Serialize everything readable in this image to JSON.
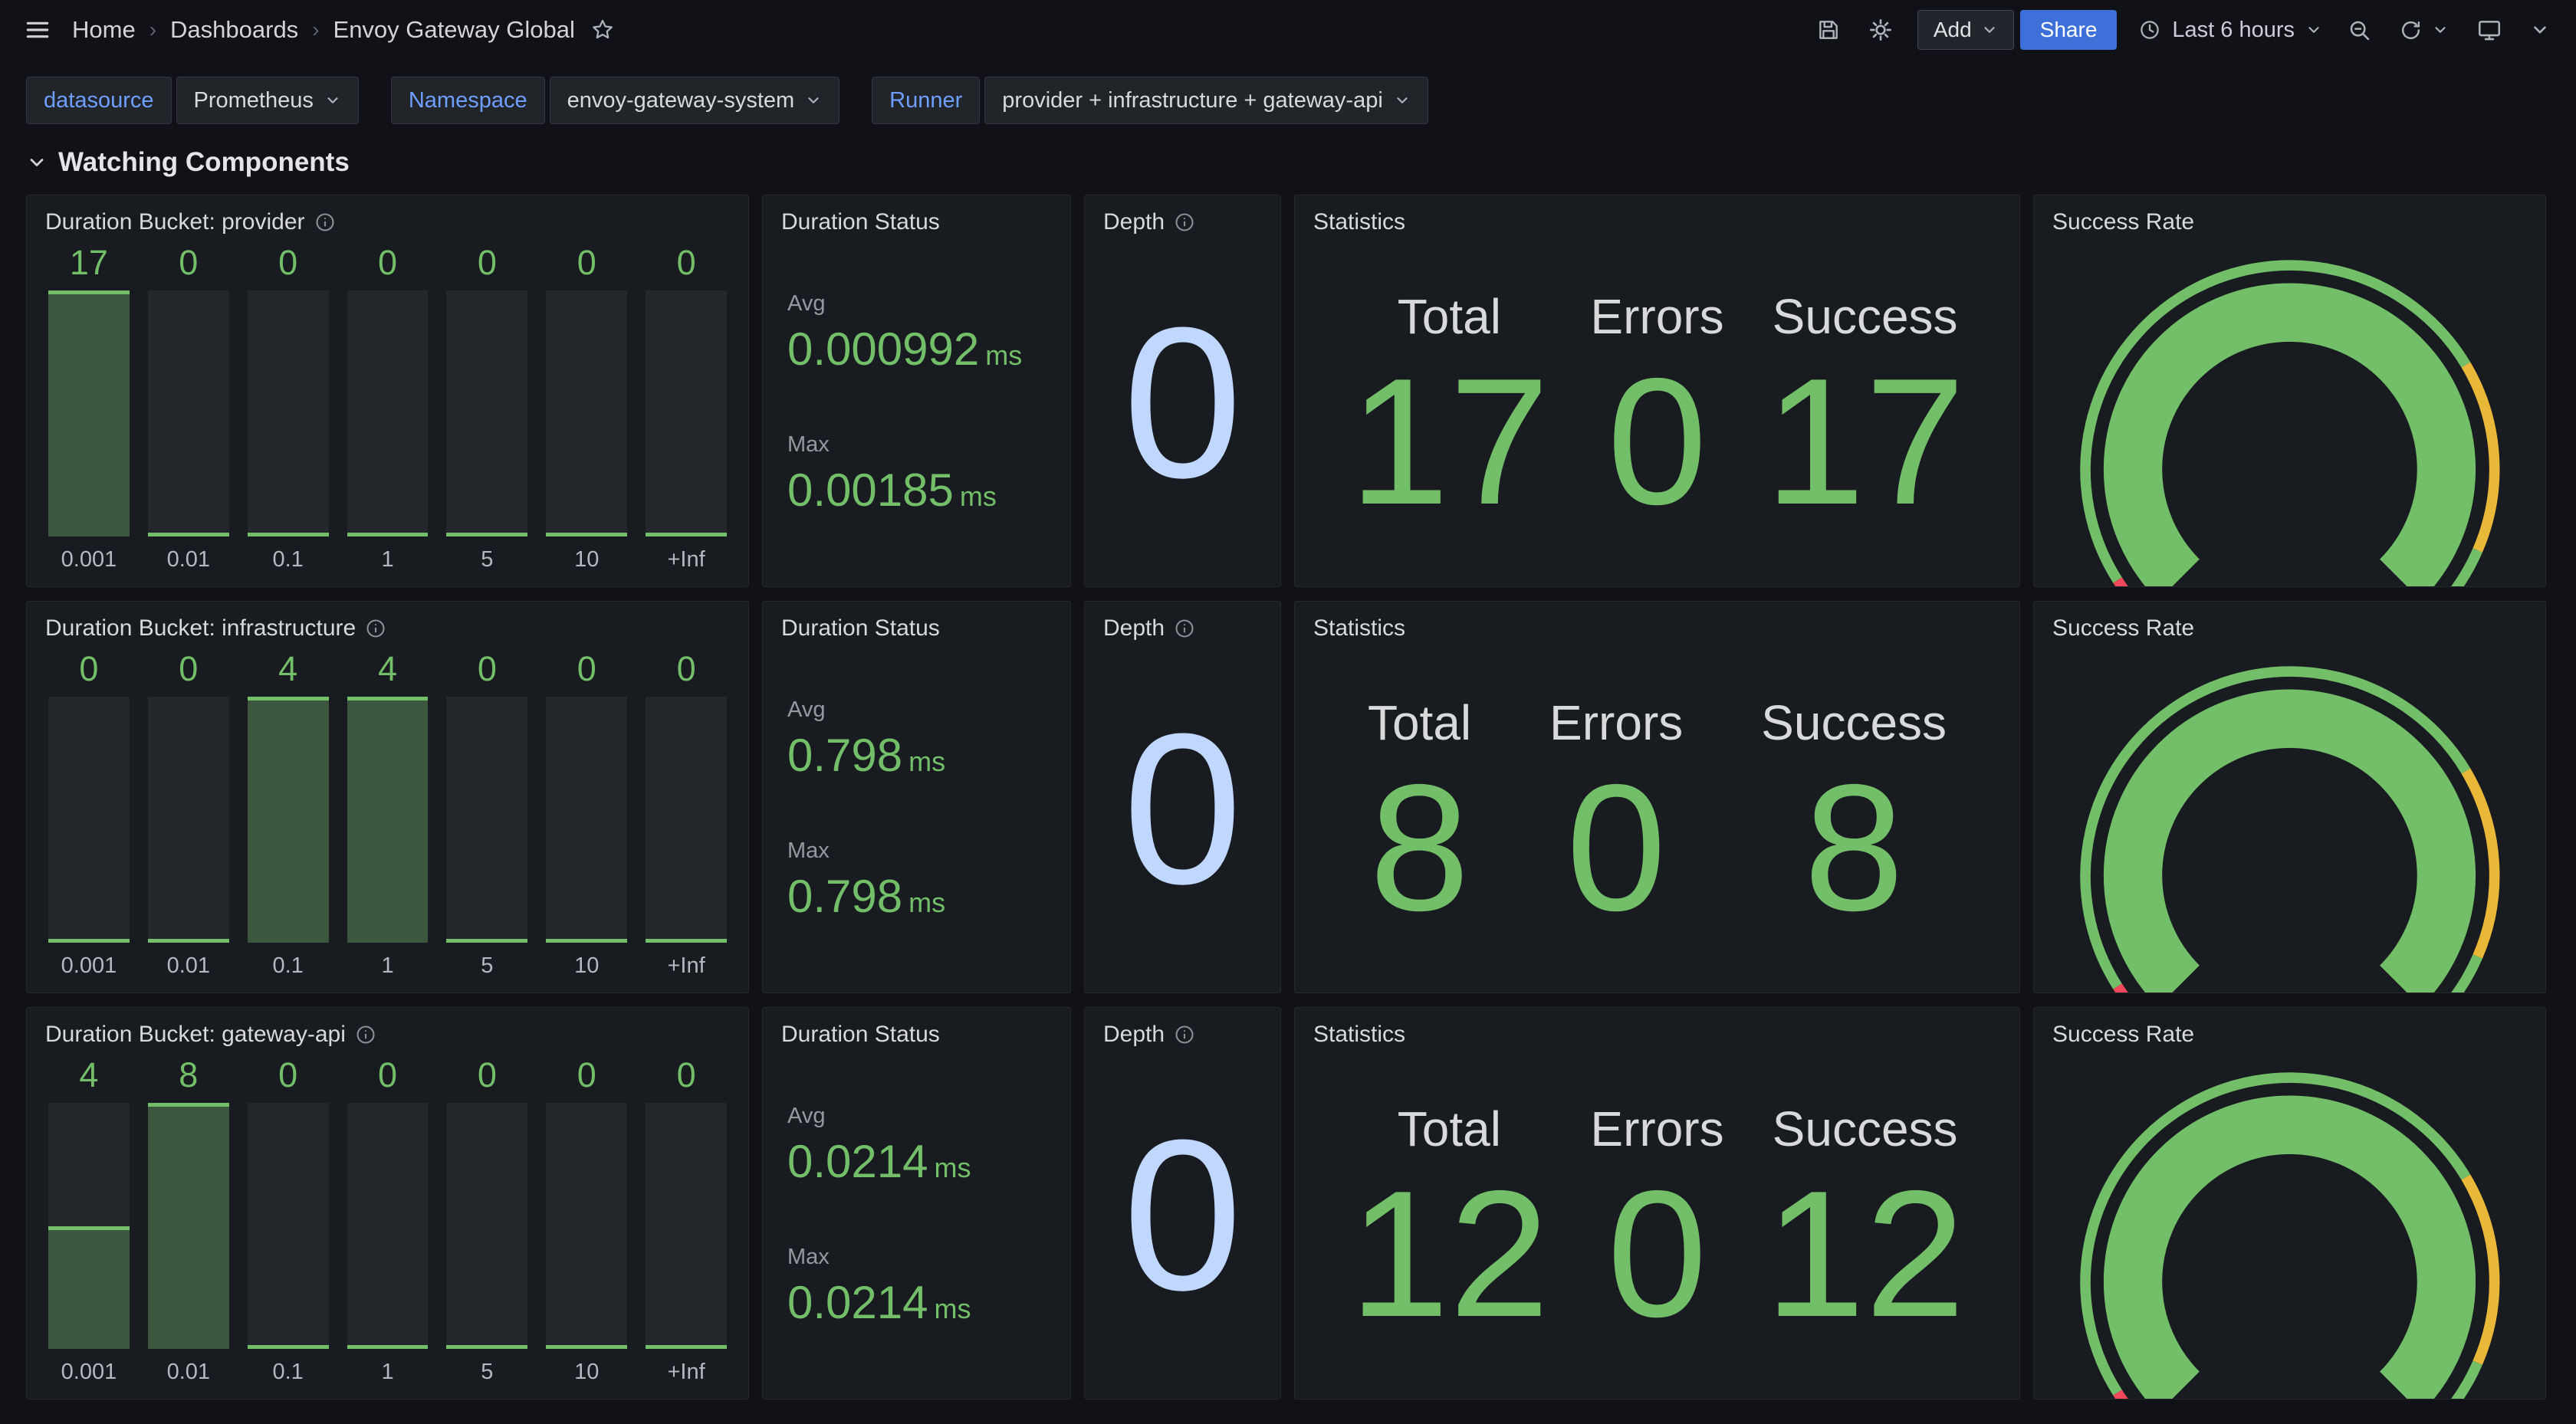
{
  "colors": {
    "page_bg": "#111217",
    "panel_bg": "#181B1F",
    "green": "#73BF69",
    "pale_blue": "#C0D8FF",
    "share_blue": "#3D71D9",
    "label_blue": "#6E9FFF",
    "red": "#F2495C",
    "yellow": "#EAB839"
  },
  "icons": {
    "hamburger": "menu",
    "star": "favorite outline",
    "save": "floppy disk",
    "gear": "dashboard settings",
    "clock": "time range history clock",
    "zoom_out": "magnifier with minus",
    "refresh": "circular arrow",
    "monitor": "tv / kiosk mode",
    "chevron_down": "caret down",
    "info": "circled i"
  },
  "nav": {
    "breadcrumbs": [
      {
        "label": "Home"
      },
      {
        "label": "Dashboards"
      },
      {
        "label": "Envoy Gateway Global"
      }
    ],
    "add_label": "Add",
    "share_label": "Share",
    "time_range": "Last 6 hours"
  },
  "filters": [
    {
      "label": "datasource",
      "value": "Prometheus"
    },
    {
      "label": "Namespace",
      "value": "envoy-gateway-system"
    },
    {
      "label": "Runner",
      "value": "provider + infrastructure + gateway-api"
    }
  ],
  "section_title": "Watching Components",
  "gauge": {
    "arc_color": "#73BF69",
    "thresholds": [
      {
        "from": 0,
        "to": 0.045,
        "color": "#F2495C"
      },
      {
        "from": 0.045,
        "to": 0.72,
        "color": "#73BF69"
      },
      {
        "from": 0.72,
        "to": 0.92,
        "color": "#EAB839"
      },
      {
        "from": 0.92,
        "to": 1,
        "color": "#73BF69"
      }
    ]
  },
  "rows": [
    {
      "bucket": {
        "title": "Duration Bucket: provider",
        "categories": [
          "0.001",
          "0.01",
          "0.1",
          "1",
          "5",
          "10",
          "+Inf"
        ],
        "values": [
          17,
          0,
          0,
          0,
          0,
          0,
          0
        ],
        "max": 17
      },
      "duration": {
        "title": "Duration Status",
        "avg_label": "Avg",
        "avg_value": "0.000992",
        "max_label": "Max",
        "max_value": "0.00185",
        "unit": "ms"
      },
      "depth": {
        "title": "Depth",
        "value": "0"
      },
      "stats": {
        "title": "Statistics",
        "columns": [
          {
            "label": "Total",
            "value": "17"
          },
          {
            "label": "Errors",
            "value": "0"
          },
          {
            "label": "Success",
            "value": "17"
          }
        ]
      },
      "success": {
        "title": "Success Rate",
        "value": "100%",
        "percent": 100
      }
    },
    {
      "bucket": {
        "title": "Duration Bucket: infrastructure",
        "categories": [
          "0.001",
          "0.01",
          "0.1",
          "1",
          "5",
          "10",
          "+Inf"
        ],
        "values": [
          0,
          0,
          4,
          4,
          0,
          0,
          0
        ],
        "max": 4
      },
      "duration": {
        "title": "Duration Status",
        "avg_label": "Avg",
        "avg_value": "0.798",
        "max_label": "Max",
        "max_value": "0.798",
        "unit": "ms"
      },
      "depth": {
        "title": "Depth",
        "value": "0"
      },
      "stats": {
        "title": "Statistics",
        "columns": [
          {
            "label": "Total",
            "value": "8"
          },
          {
            "label": "Errors",
            "value": "0"
          },
          {
            "label": "Success",
            "value": "8"
          }
        ]
      },
      "success": {
        "title": "Success Rate",
        "value": "100%",
        "percent": 100
      }
    },
    {
      "bucket": {
        "title": "Duration Bucket: gateway-api",
        "categories": [
          "0.001",
          "0.01",
          "0.1",
          "1",
          "5",
          "10",
          "+Inf"
        ],
        "values": [
          4,
          8,
          0,
          0,
          0,
          0,
          0
        ],
        "max": 8
      },
      "duration": {
        "title": "Duration Status",
        "avg_label": "Avg",
        "avg_value": "0.0214",
        "max_label": "Max",
        "max_value": "0.0214",
        "unit": "ms"
      },
      "depth": {
        "title": "Depth",
        "value": "0"
      },
      "stats": {
        "title": "Statistics",
        "columns": [
          {
            "label": "Total",
            "value": "12"
          },
          {
            "label": "Errors",
            "value": "0"
          },
          {
            "label": "Success",
            "value": "12"
          }
        ]
      },
      "success": {
        "title": "Success Rate",
        "value": "100%",
        "percent": 100
      }
    }
  ],
  "chart_data": [
    {
      "type": "bar",
      "title": "Duration Bucket: provider",
      "categories": [
        "0.001",
        "0.01",
        "0.1",
        "1",
        "5",
        "10",
        "+Inf"
      ],
      "values": [
        17,
        0,
        0,
        0,
        0,
        0,
        0
      ]
    },
    {
      "type": "bar",
      "title": "Duration Bucket: infrastructure",
      "categories": [
        "0.001",
        "0.01",
        "0.1",
        "1",
        "5",
        "10",
        "+Inf"
      ],
      "values": [
        0,
        0,
        4,
        4,
        0,
        0,
        0
      ]
    },
    {
      "type": "bar",
      "title": "Duration Bucket: gateway-api",
      "categories": [
        "0.001",
        "0.01",
        "0.1",
        "1",
        "5",
        "10",
        "+Inf"
      ],
      "values": [
        4,
        8,
        0,
        0,
        0,
        0,
        0
      ]
    },
    {
      "type": "gauge",
      "title": "Success Rate",
      "values": [
        100,
        100,
        100
      ],
      "unit": "%"
    }
  ]
}
